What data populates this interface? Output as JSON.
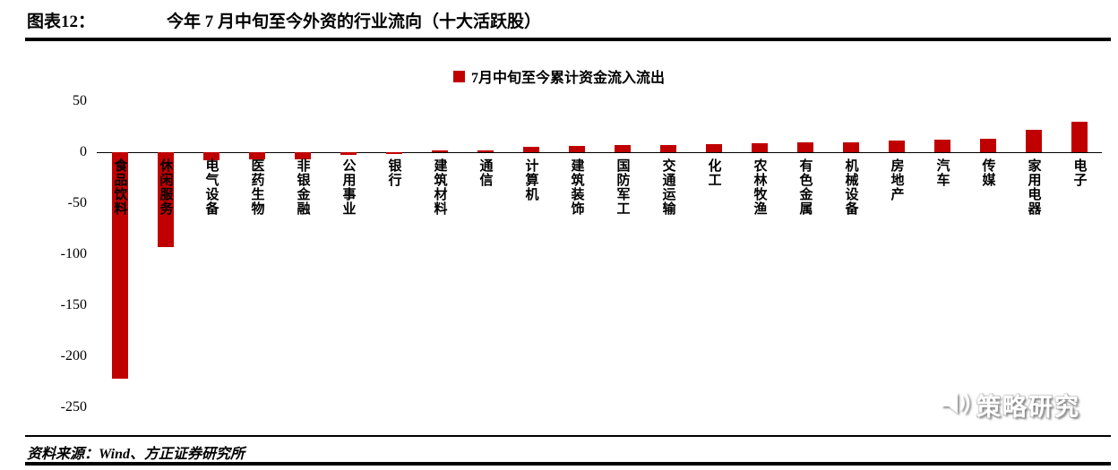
{
  "header": {
    "figure_label": "图表12：",
    "title": "今年 7 月中旬至今外资的行业流向（十大活跃股）"
  },
  "chart_data": {
    "type": "bar",
    "title": "今年 7 月中旬至今外资的行业流向（十大活跃股）",
    "legend": "7月中旬至今累计资金流入流出",
    "legend_position": "top-center",
    "grid": false,
    "bar_color": "#c00000",
    "categories": [
      "食品饮料",
      "休闲服务",
      "电气设备",
      "医药生物",
      "非银金融",
      "公用事业",
      "银行",
      "建筑材料",
      "通信",
      "计算机",
      "建筑装饰",
      "国防军工",
      "交通运输",
      "化工",
      "农林牧渔",
      "有色金属",
      "机械设备",
      "房地产",
      "汽车",
      "传媒",
      "家用电器",
      "电子"
    ],
    "values": [
      -222,
      -93,
      -8,
      -7,
      -7,
      -3,
      -2,
      2,
      2,
      5,
      6,
      7,
      7,
      8,
      9,
      10,
      10,
      11,
      12,
      13,
      22,
      30
    ],
    "xlabel": "",
    "ylabel": "",
    "ylim": [
      -250,
      50
    ],
    "yticks": [
      50,
      0,
      -50,
      -100,
      -150,
      -200,
      -250
    ]
  },
  "watermark": {
    "text": "策略研究",
    "icon": "megaphone-icon"
  },
  "footer": {
    "source": "资料来源：Wind、方正证券研究所"
  }
}
